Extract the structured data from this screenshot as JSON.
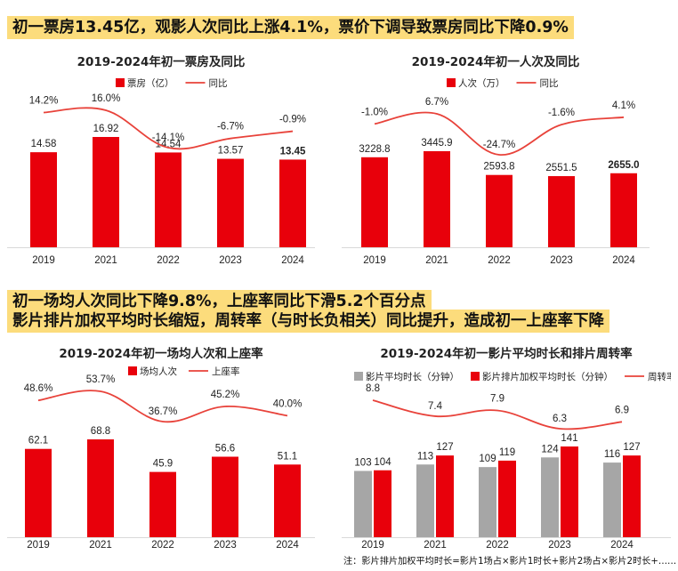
{
  "headlines": {
    "h1": "初一票房13.45亿，观影人次同比上涨4.1%，票价下调导致票房同比下降0.9%",
    "h2a": "初一场均人次同比下降9.8%，上座率同比下滑5.2个百分点",
    "h2b": "影片排片加权平均时长缩短，周转率（与时长负相关）同比提升，造成初一上座率下降"
  },
  "footnote": "注：影片排片加权平均时长=影片1场占×影片1时长+影片2场占×影片2时长+……",
  "colors": {
    "red": "#e8000b",
    "line": "#e8423a",
    "gray": "#a6a6a6",
    "highlight": "#fcdc7c"
  },
  "chart_data": [
    {
      "type": "bar",
      "title": "2019-2024年初一票房及同比",
      "categories": [
        "2019",
        "2021",
        "2022",
        "2023",
        "2024"
      ],
      "series": [
        {
          "name": "票房（亿）",
          "values": [
            14.58,
            16.92,
            14.54,
            13.57,
            13.45
          ],
          "labels": [
            "14.58",
            "16.92",
            "14.54",
            "13.57",
            "13.45"
          ]
        }
      ],
      "line": {
        "name": "同比",
        "values": [
          14.2,
          16.0,
          -14.1,
          -6.7,
          -0.9
        ],
        "labels": [
          "14.2%",
          "16.0%",
          "-14.1%",
          "-6.7%",
          "-0.9%"
        ]
      },
      "highlight_last": true
    },
    {
      "type": "bar",
      "title": "2019-2024年初一人次及同比",
      "categories": [
        "2019",
        "2021",
        "2022",
        "2023",
        "2024"
      ],
      "series": [
        {
          "name": "人次（万）",
          "values": [
            3228.8,
            3445.9,
            2593.8,
            2551.5,
            2655.0
          ],
          "labels": [
            "3228.8",
            "3445.9",
            "2593.8",
            "2551.5",
            "2655.0"
          ]
        }
      ],
      "line": {
        "name": "同比",
        "values": [
          -1.0,
          6.7,
          -24.7,
          -1.6,
          4.1
        ],
        "labels": [
          "-1.0%",
          "6.7%",
          "-24.7%",
          "-1.6%",
          "4.1%"
        ]
      },
      "highlight_last": true
    },
    {
      "type": "bar",
      "title": "2019-2024年初一场均人次和上座率",
      "categories": [
        "2019",
        "2021",
        "2022",
        "2023",
        "2024"
      ],
      "series": [
        {
          "name": "场均人次",
          "values": [
            62.1,
            68.8,
            45.9,
            56.6,
            51.1
          ],
          "labels": [
            "62.1",
            "68.8",
            "45.9",
            "56.6",
            "51.1"
          ]
        }
      ],
      "line": {
        "name": "上座率",
        "values": [
          48.6,
          53.7,
          36.7,
          45.2,
          40.0
        ],
        "labels": [
          "48.6%",
          "53.7%",
          "36.7%",
          "45.2%",
          "40.0%"
        ]
      },
      "highlight_last": false
    },
    {
      "type": "bar",
      "title": "2019-2024年初一影片平均时长和排片周转率",
      "categories": [
        "2019",
        "2021",
        "2022",
        "2023",
        "2024"
      ],
      "series": [
        {
          "name": "影片平均时长（分钟）",
          "values": [
            103,
            113,
            109,
            124,
            116
          ],
          "labels": [
            "103",
            "113",
            "109",
            "124",
            "116"
          ]
        },
        {
          "name": "影片排片加权平均时长（分钟）",
          "values": [
            104,
            127,
            119,
            141,
            127
          ],
          "labels": [
            "104",
            "127",
            "119",
            "141",
            "127"
          ]
        }
      ],
      "line": {
        "name": "周转率",
        "values": [
          8.8,
          7.4,
          7.9,
          6.3,
          6.9
        ],
        "labels": [
          "8.8",
          "7.4",
          "7.9",
          "6.3",
          "6.9"
        ]
      },
      "highlight_last": false
    }
  ]
}
